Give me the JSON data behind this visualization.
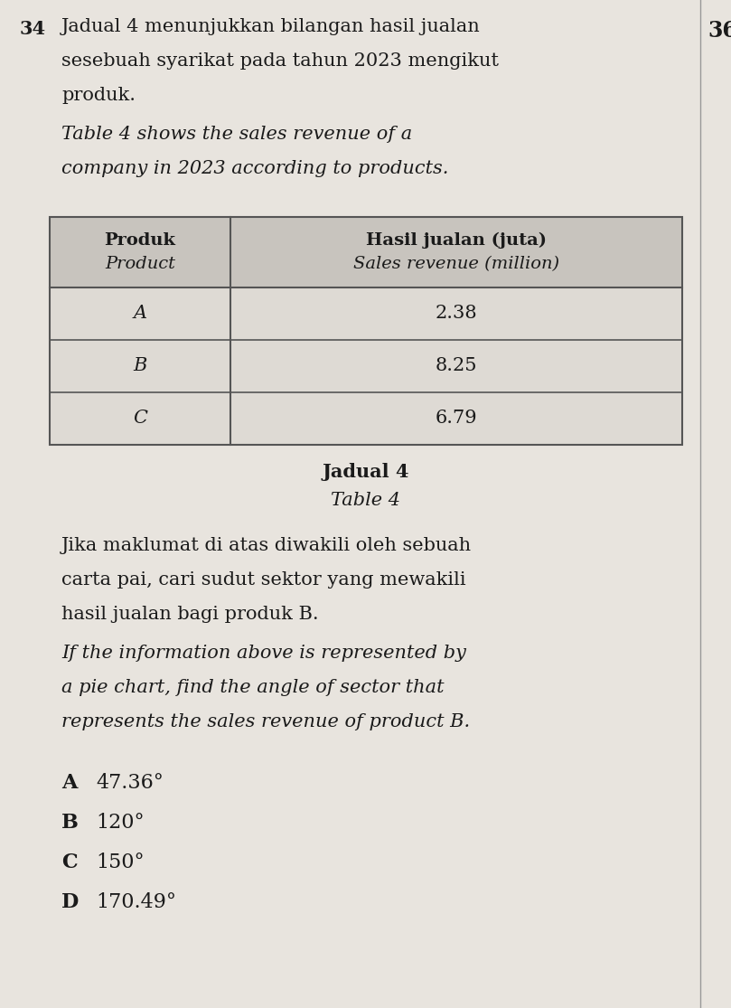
{
  "question_number": "34",
  "page_number": "36",
  "malay_intro_lines": [
    "Jadual 4 menunjukkan bilangan hasil jualan",
    "sesebuah syarikat pada tahun 2023 mengikut",
    "produk."
  ],
  "english_intro_lines": [
    "Table 4 shows the sales revenue of a",
    "company in 2023 according to products."
  ],
  "table_header_col1_malay": "Produk",
  "table_header_col1_english": "Product",
  "table_header_col2_malay": "Hasil jualan (juta)",
  "table_header_col2_english": "Sales revenue (million)",
  "table_data": [
    [
      "A",
      "2.38"
    ],
    [
      "B",
      "8.25"
    ],
    [
      "C",
      "6.79"
    ]
  ],
  "table_caption_malay": "Jadual 4",
  "table_caption_english": "Table 4",
  "malay_question_lines": [
    "Jika maklumat di atas diwakili oleh sebuah",
    "carta pai, cari sudut sektor yang mewakili",
    "hasil jualan bagi produk B."
  ],
  "english_question_lines": [
    "If the information above is represented by",
    "a pie chart, find the angle of sector that",
    "represents the sales revenue of product B."
  ],
  "options": [
    [
      "A",
      "47.36°"
    ],
    [
      "B",
      "120°"
    ],
    [
      "C",
      "150°"
    ],
    [
      "D",
      "170.49°"
    ]
  ],
  "background_color": "#e8e4de",
  "table_header_bg": "#c8c4be",
  "table_row_bg": "#dedad4",
  "text_color": "#1a1a1a",
  "table_border_color": "#555555",
  "right_border_color": "#aaaaaa"
}
